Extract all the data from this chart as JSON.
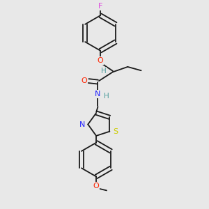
{
  "bg_color": "#e8e8e8",
  "bond_color": "#1a1a1a",
  "atom_colors": {
    "F": "#dd44dd",
    "O": "#ff2200",
    "H": "#4a9a9a",
    "N": "#2222ff",
    "S": "#cccc00",
    "C": "#1a1a1a"
  },
  "fig_width": 3.0,
  "fig_height": 3.0,
  "dpi": 100
}
